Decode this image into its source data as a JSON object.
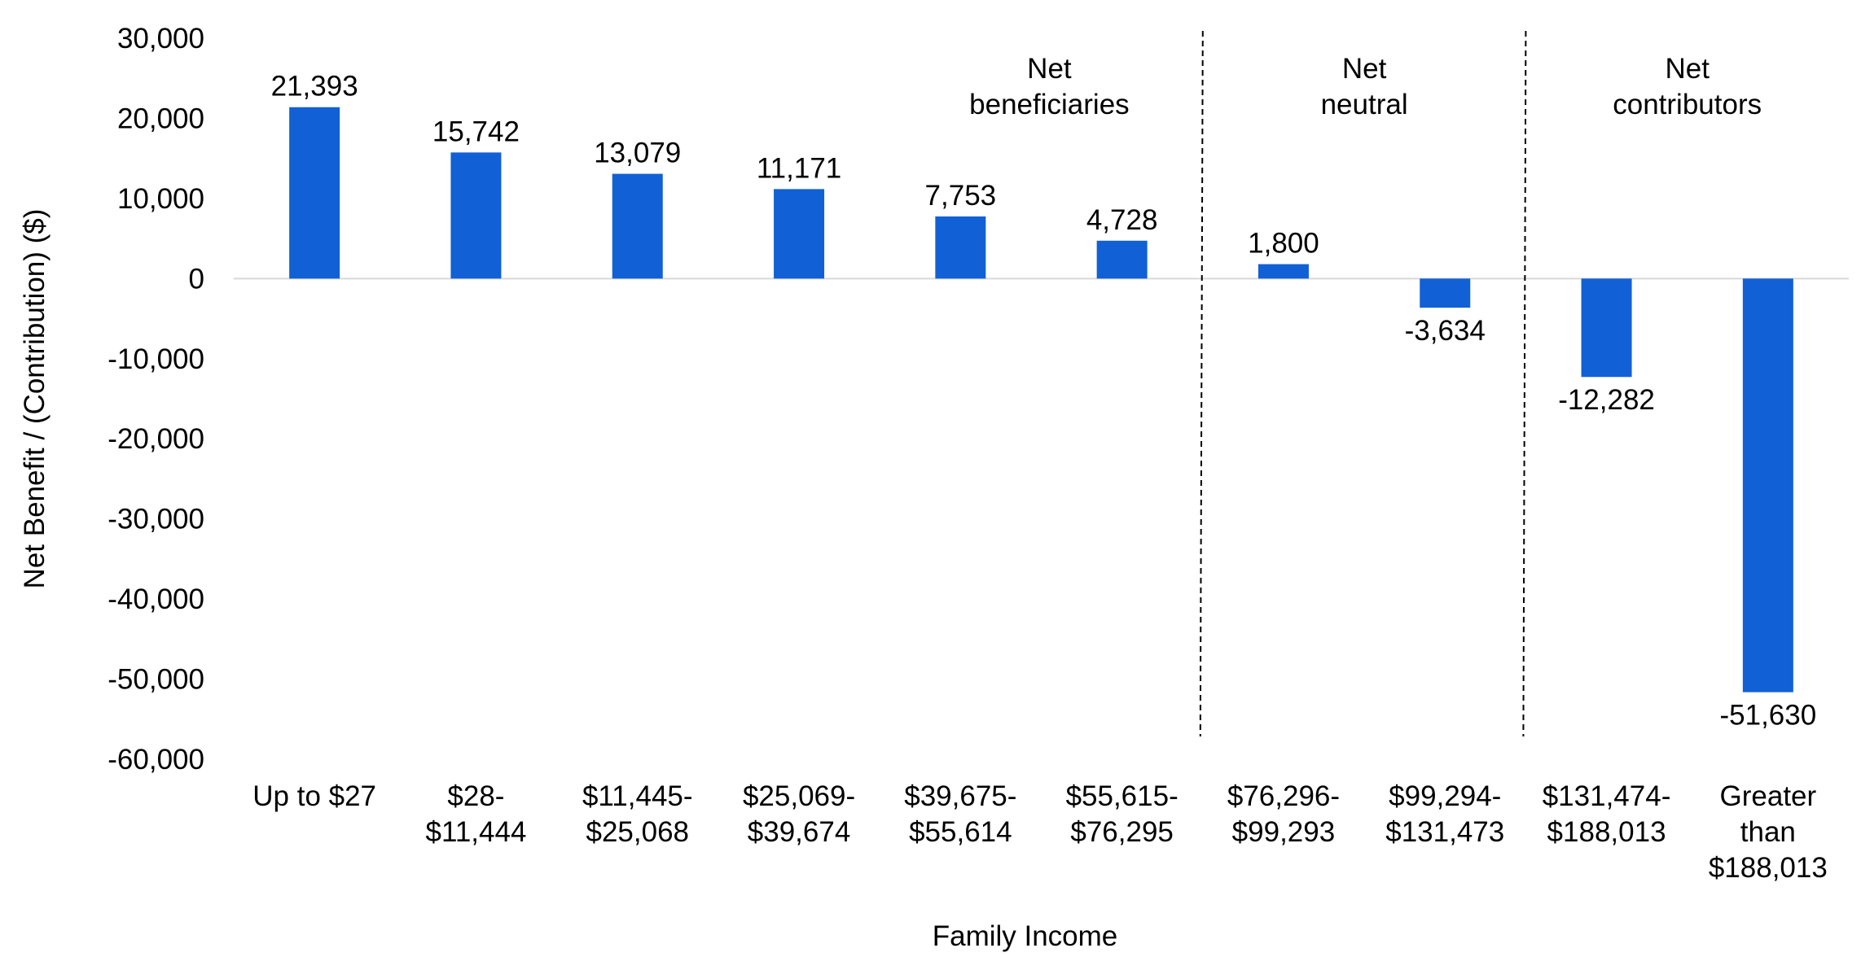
{
  "chart_data": {
    "type": "bar",
    "title": "",
    "xlabel": "Family Income",
    "ylabel": "Net Benefit / (Contribution) ($)",
    "ylim": [
      -60000,
      30000
    ],
    "yticks": [
      30000,
      20000,
      10000,
      0,
      -10000,
      -20000,
      -30000,
      -40000,
      -50000,
      -60000
    ],
    "ytick_labels": [
      "30,000",
      "20,000",
      "10,000",
      "0",
      "-10,000",
      "-20,000",
      "-30,000",
      "-40,000",
      "-50,000",
      "-60,000"
    ],
    "grid": false,
    "bar_color": "#1160D6",
    "zero_line_color": "#D9D9D9",
    "categories": [
      [
        "Up to $27"
      ],
      [
        "$28-",
        "$11,444"
      ],
      [
        "$11,445-",
        "$25,068"
      ],
      [
        "$25,069-",
        "$39,674"
      ],
      [
        "$39,675-",
        "$55,614"
      ],
      [
        "$55,615-",
        "$76,295"
      ],
      [
        "$76,296-",
        "$99,293"
      ],
      [
        "$99,294-",
        "$131,473"
      ],
      [
        "$131,474-",
        "$188,013"
      ],
      [
        "Greater",
        "than",
        "$188,013"
      ]
    ],
    "values": [
      21393,
      15742,
      13079,
      11171,
      7753,
      4728,
      1800,
      -3634,
      -12282,
      -51630
    ],
    "value_labels": [
      "21,393",
      "15,742",
      "13,079",
      "11,171",
      "7,753",
      "4,728",
      "1,800",
      "-3,634",
      "-12,282",
      "-51,630"
    ],
    "groups": [
      {
        "lines": [
          "Net",
          "beneficiaries"
        ],
        "from_index": 0,
        "to_index": 5
      },
      {
        "lines": [
          "Net",
          "neutral"
        ],
        "from_index": 6,
        "to_index": 7
      },
      {
        "lines": [
          "Net",
          "contributors"
        ],
        "from_index": 8,
        "to_index": 9
      }
    ],
    "dividers_after_index": [
      5,
      7
    ]
  }
}
